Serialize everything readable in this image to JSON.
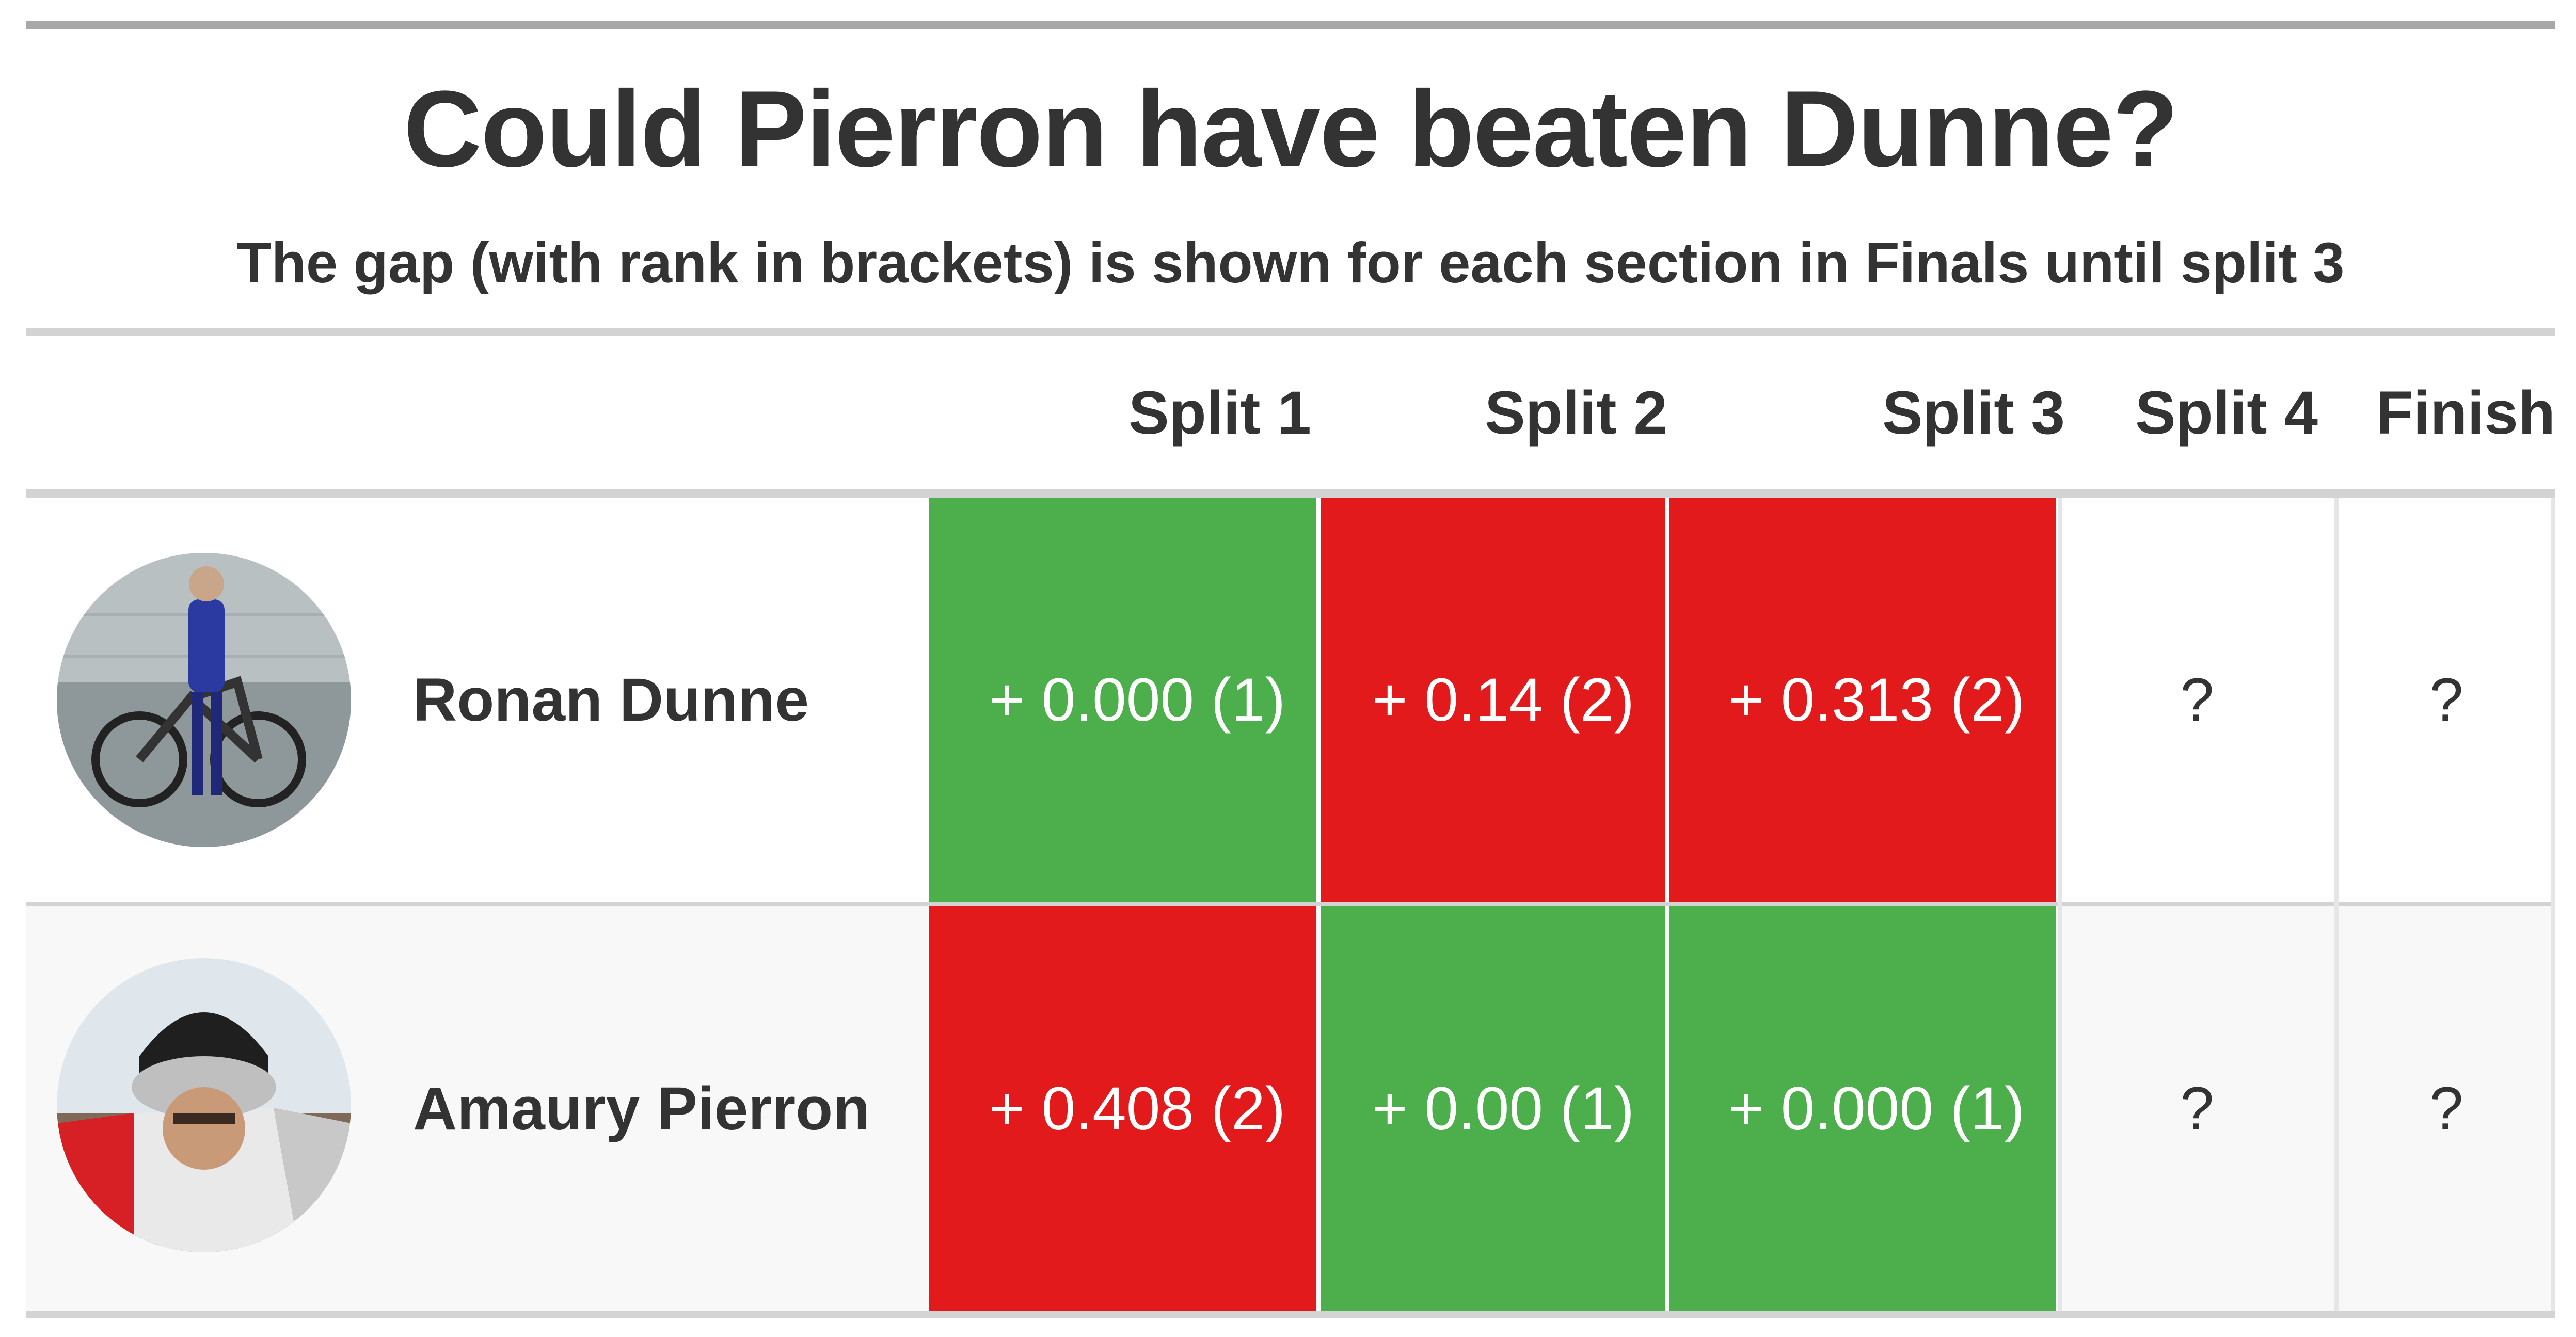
{
  "title": "Could Pierron have beaten Dunne?",
  "subtitle": "The gap (with rank in brackets) is shown for each section in Finals until split 3",
  "colors": {
    "good": "#4caf4c",
    "bad": "#e31a1c",
    "text": "#333333"
  },
  "chart_data": {
    "type": "table",
    "columns": [
      "Split 1",
      "Split 2",
      "Split 3",
      "Split 4",
      "Finish"
    ],
    "rows": [
      {
        "name": "Ronan Dunne",
        "avatar_icon": "rider-avatar-icon",
        "cells": [
          {
            "text": "+ 0.000 (1)",
            "gap": 0.0,
            "rank": 1,
            "status": "good"
          },
          {
            "text": "+ 0.14 (2)",
            "gap": 0.14,
            "rank": 2,
            "status": "bad"
          },
          {
            "text": "+ 0.313 (2)",
            "gap": 0.313,
            "rank": 2,
            "status": "bad"
          },
          {
            "text": "?",
            "status": "unknown"
          },
          {
            "text": "?",
            "status": "unknown"
          }
        ]
      },
      {
        "name": "Amaury Pierron",
        "avatar_icon": "rider-avatar-icon",
        "cells": [
          {
            "text": "+ 0.408 (2)",
            "gap": 0.408,
            "rank": 2,
            "status": "bad"
          },
          {
            "text": "+ 0.00 (1)",
            "gap": 0.0,
            "rank": 1,
            "status": "good"
          },
          {
            "text": "+ 0.000 (1)",
            "gap": 0.0,
            "rank": 1,
            "status": "good"
          },
          {
            "text": "?",
            "status": "unknown"
          },
          {
            "text": "?",
            "status": "unknown"
          }
        ]
      }
    ]
  }
}
